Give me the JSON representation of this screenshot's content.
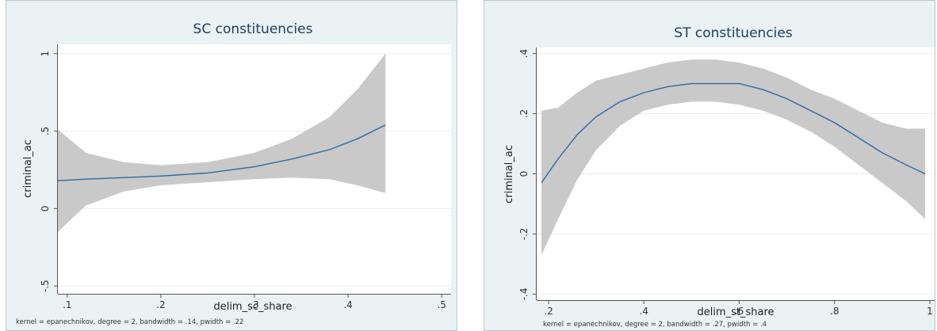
{
  "chart_data": [
    {
      "type": "line",
      "title": "SC constituencies",
      "xlabel": "delim_sc_share",
      "ylabel": "criminal_ac",
      "note": "kernel = epanechnikov, degree = 2, bandwidth = .14, pwidth = .22",
      "xlim": [
        0.09,
        0.51
      ],
      "ylim": [
        -0.55,
        1.06
      ],
      "x_ticks": [
        0.1,
        0.2,
        0.3,
        0.4,
        0.5
      ],
      "x_tick_labels": [
        ".1",
        ".2",
        ".3",
        ".4",
        ".5"
      ],
      "y_ticks": [
        -0.5,
        0,
        0.5,
        1
      ],
      "y_tick_labels": [
        "-.5",
        "0",
        ".5",
        "1"
      ],
      "grid": true,
      "series": [
        {
          "color": "#2e6aa3",
          "band_color": "#c9c9c9",
          "x": [
            0.09,
            0.12,
            0.16,
            0.2,
            0.25,
            0.3,
            0.34,
            0.38,
            0.41,
            0.44
          ],
          "y": [
            0.18,
            0.19,
            0.2,
            0.21,
            0.23,
            0.27,
            0.32,
            0.38,
            0.45,
            0.54
          ],
          "lower": [
            -0.15,
            0.02,
            0.11,
            0.15,
            0.17,
            0.19,
            0.2,
            0.19,
            0.15,
            0.1
          ],
          "upper": [
            0.51,
            0.36,
            0.3,
            0.28,
            0.3,
            0.36,
            0.45,
            0.59,
            0.77,
            1.0
          ]
        }
      ]
    },
    {
      "type": "line",
      "title": "ST constituencies",
      "xlabel": "delim_st_share",
      "ylabel": "criminal_ac",
      "note": "kernel = epanechnikov, degree = 2, bandwidth = .27, pwidth = .4",
      "xlim": [
        0.175,
        1.01
      ],
      "ylim": [
        -0.42,
        0.42
      ],
      "x_ticks": [
        0.2,
        0.4,
        0.6,
        0.8,
        1.0
      ],
      "x_tick_labels": [
        ".2",
        ".4",
        ".6",
        ".8",
        "1"
      ],
      "y_ticks": [
        -0.4,
        -0.2,
        0,
        0.2,
        0.4
      ],
      "y_tick_labels": [
        "-.4",
        "-.2",
        "0",
        ".2",
        ".4"
      ],
      "grid": true,
      "series": [
        {
          "color": "#2e6aa3",
          "band_color": "#c9c9c9",
          "x": [
            0.185,
            0.22,
            0.26,
            0.3,
            0.35,
            0.4,
            0.45,
            0.5,
            0.55,
            0.6,
            0.65,
            0.7,
            0.75,
            0.8,
            0.85,
            0.9,
            0.95,
            0.99
          ],
          "y": [
            -0.03,
            0.05,
            0.13,
            0.19,
            0.24,
            0.27,
            0.29,
            0.3,
            0.3,
            0.3,
            0.28,
            0.25,
            0.21,
            0.17,
            0.12,
            0.07,
            0.03,
            0.0
          ],
          "lower": [
            -0.27,
            -0.15,
            -0.02,
            0.08,
            0.16,
            0.21,
            0.23,
            0.24,
            0.24,
            0.23,
            0.21,
            0.18,
            0.14,
            0.09,
            0.03,
            -0.03,
            -0.09,
            -0.15
          ],
          "upper": [
            0.21,
            0.22,
            0.27,
            0.31,
            0.33,
            0.35,
            0.37,
            0.38,
            0.38,
            0.37,
            0.35,
            0.32,
            0.28,
            0.25,
            0.21,
            0.17,
            0.15,
            0.15
          ]
        }
      ]
    }
  ]
}
